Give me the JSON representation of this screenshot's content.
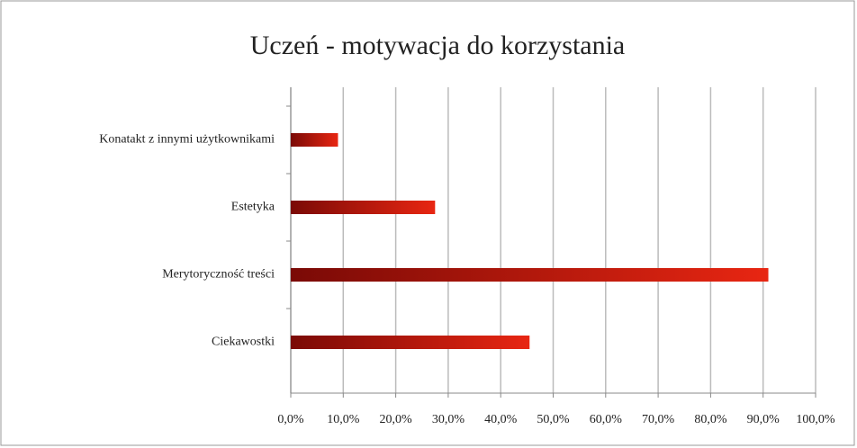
{
  "chart_data": {
    "type": "bar",
    "orientation": "horizontal",
    "title": "Uczeń - motywacja do korzystania",
    "categories": [
      "Konatakt z innymi użytkownikami",
      "Estetyka",
      "Merytoryczność treści",
      "Ciekawostki"
    ],
    "values": [
      9,
      27.5,
      91,
      45.5
    ],
    "color": "#d42010",
    "xlim": [
      0,
      100
    ],
    "xticks": [
      {
        "value": 0,
        "label": "0,0%"
      },
      {
        "value": 10,
        "label": "10,0%"
      },
      {
        "value": 20,
        "label": "20,0%"
      },
      {
        "value": 30,
        "label": "30,0%"
      },
      {
        "value": 40,
        "label": "40,0%"
      },
      {
        "value": 50,
        "label": "50,0%"
      },
      {
        "value": 60,
        "label": "60,0%"
      },
      {
        "value": 70,
        "label": "70,0%"
      },
      {
        "value": 80,
        "label": "80,0%"
      },
      {
        "value": 90,
        "label": "90,0%"
      },
      {
        "value": 100,
        "label": "100,0%"
      }
    ],
    "grid": true
  }
}
